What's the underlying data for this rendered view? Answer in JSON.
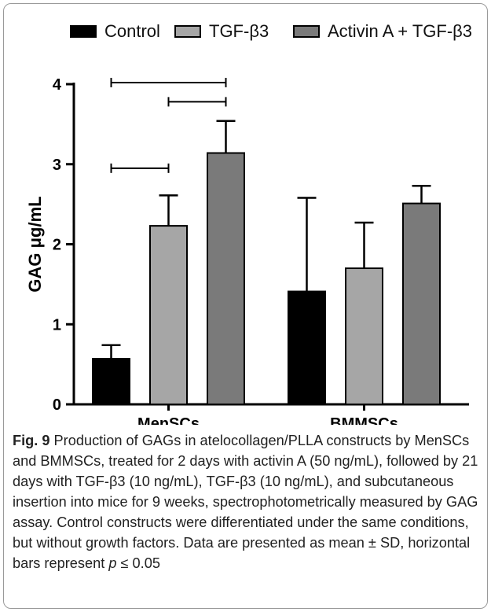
{
  "chart_data": {
    "type": "bar",
    "categories": [
      "MenSCs",
      "BMMSCs"
    ],
    "series": [
      {
        "name": "Control",
        "color": "#000000",
        "values": [
          0.57,
          1.41
        ],
        "sd": [
          0.17,
          1.17
        ]
      },
      {
        "name": "TGF-β3",
        "color": "#a6a6a6",
        "values": [
          2.23,
          1.7
        ],
        "sd": [
          0.38,
          0.57
        ]
      },
      {
        "name": "Activin A + TGF-β3",
        "color": "#7a7a7a",
        "values": [
          3.14,
          2.51
        ],
        "sd": [
          0.4,
          0.22
        ]
      }
    ],
    "ylabel": "GAG μg/mL",
    "xlabel": "",
    "ylim": [
      0,
      4
    ],
    "yticks": [
      "0",
      "1",
      "2",
      "3",
      "4"
    ],
    "grid": false,
    "legend_position": "top",
    "significance": [
      {
        "category": "MenSCs",
        "from_series": 0,
        "to_series": 2,
        "y": 4.02
      },
      {
        "category": "MenSCs",
        "from_series": 1,
        "to_series": 2,
        "y": 3.78
      },
      {
        "category": "MenSCs",
        "from_series": 0,
        "to_series": 1,
        "y": 2.95
      }
    ]
  },
  "caption": {
    "label": "Fig. 9",
    "text_before_p": " Production of GAGs in atelocollagen/PLLA constructs by MenSCs and BMMSCs, treated for 2 days with activin A (50 ng/mL), followed by 21 days with TGF-β3 (10 ng/mL), TGF-β3 (10 ng/mL), and subcutaneous insertion into mice for 9 weeks, spectrophotometrically measured by GAG assay. Control constructs were differentiated under the same conditions, but without growth factors. Data are presented as mean ± SD, horizontal bars represent ",
    "p_symbol": "p",
    "text_after_p": " ≤ 0.05"
  }
}
